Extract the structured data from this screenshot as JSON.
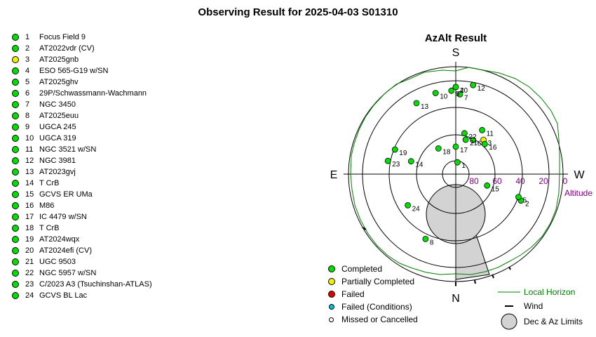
{
  "title": "Observing Result for 2025-04-03  S01310",
  "chart_title": "AzAlt Result",
  "compass": {
    "s": "S",
    "n": "N",
    "e": "E",
    "w": "W"
  },
  "altitude_labels": [
    "80",
    "60",
    "40",
    "20",
    "0"
  ],
  "altitude_axis_title": "Altitude",
  "colors": {
    "completed": "#00e000",
    "partial": "#f0f000",
    "failed": "#e00000",
    "failed_conditions": "#00c8d8",
    "horizon": "#008000",
    "altitude": "#800080",
    "limits": "#d3d3d3"
  },
  "targets": [
    {
      "num": "1",
      "name": "Focus Field 9",
      "status": "completed"
    },
    {
      "num": "2",
      "name": "AT2022vdr (CV)",
      "status": "completed"
    },
    {
      "num": "3",
      "name": "AT2025gnb",
      "status": "partial"
    },
    {
      "num": "4",
      "name": "ESO 565-G19 w/SN",
      "status": "completed"
    },
    {
      "num": "5",
      "name": "AT2025ghv",
      "status": "completed"
    },
    {
      "num": "6",
      "name": "29P/Schwassmann-Wachmann",
      "status": "completed"
    },
    {
      "num": "7",
      "name": "NGC 3450",
      "status": "completed"
    },
    {
      "num": "8",
      "name": "AT2025euu",
      "status": "completed"
    },
    {
      "num": "9",
      "name": "UGCA 245",
      "status": "completed"
    },
    {
      "num": "10",
      "name": "UGCA 319",
      "status": "completed"
    },
    {
      "num": "11",
      "name": "NGC 3521 w/SN",
      "status": "completed"
    },
    {
      "num": "12",
      "name": "NGC 3981",
      "status": "completed"
    },
    {
      "num": "13",
      "name": "AT2023gvj",
      "status": "completed"
    },
    {
      "num": "14",
      "name": "T CrB",
      "status": "completed"
    },
    {
      "num": "15",
      "name": "GCVS ER UMa",
      "status": "completed"
    },
    {
      "num": "16",
      "name": "M86",
      "status": "completed"
    },
    {
      "num": "17",
      "name": "IC 4479 w/SN",
      "status": "completed"
    },
    {
      "num": "18",
      "name": "T CrB",
      "status": "completed"
    },
    {
      "num": "19",
      "name": "AT2024wqx",
      "status": "completed"
    },
    {
      "num": "20",
      "name": "AT2024efi (CV)",
      "status": "completed"
    },
    {
      "num": "21",
      "name": "UGC 9503",
      "status": "completed"
    },
    {
      "num": "22",
      "name": "NGC 5957 w/SN",
      "status": "completed"
    },
    {
      "num": "23",
      "name": "C/2023 A3 (Tsuchinshan-ATLAS)",
      "status": "completed"
    },
    {
      "num": "24",
      "name": "GCVS BL Lac",
      "status": "completed"
    }
  ],
  "plot_points": [
    {
      "num": "1",
      "status": "completed",
      "az": 188,
      "alt": 80
    },
    {
      "num": "2",
      "status": "completed",
      "az": 292,
      "alt": 31
    },
    {
      "num": "3",
      "status": "partial",
      "az": 219,
      "alt": 53
    },
    {
      "num": "4",
      "status": "completed",
      "az": 180,
      "alt": 17
    },
    {
      "num": "5",
      "status": "completed",
      "az": 290,
      "alt": 34
    },
    {
      "num": "6",
      "status": "completed",
      "az": 207,
      "alt": 58
    },
    {
      "num": "7",
      "status": "completed",
      "az": 183,
      "alt": 23
    },
    {
      "num": "8",
      "status": "completed",
      "az": 25,
      "alt": 30
    },
    {
      "num": "9",
      "status": "completed",
      "az": 177,
      "alt": 20
    },
    {
      "num": "10",
      "status": "completed",
      "az": 166,
      "alt": 20
    },
    {
      "num": "11",
      "status": "completed",
      "az": 211,
      "alt": 47
    },
    {
      "num": "12",
      "status": "completed",
      "az": 191,
      "alt": 14
    },
    {
      "num": "13",
      "status": "completed",
      "az": 151,
      "alt": 22
    },
    {
      "num": "14",
      "status": "completed",
      "az": 106,
      "alt": 51
    },
    {
      "num": "15",
      "status": "completed",
      "az": 290,
      "alt": 62
    },
    {
      "num": "16",
      "status": "completed",
      "az": 224,
      "alt": 55
    },
    {
      "num": "17",
      "status": "completed",
      "az": 180,
      "alt": 67
    },
    {
      "num": "18",
      "status": "completed",
      "az": 146,
      "alt": 64
    },
    {
      "num": "19",
      "status": "completed",
      "az": 112,
      "alt": 35
    },
    {
      "num": "20",
      "status": "completed",
      "az": 180,
      "alt": 17
    },
    {
      "num": "21",
      "status": "completed",
      "az": 196,
      "alt": 60
    },
    {
      "num": "22",
      "status": "completed",
      "az": 192,
      "alt": 55
    },
    {
      "num": "23",
      "status": "completed",
      "az": 101,
      "alt": 32
    },
    {
      "num": "24",
      "status": "completed",
      "az": 57,
      "alt": 42
    }
  ],
  "legend": {
    "completed": "Completed",
    "partial": "Partially Completed",
    "failed": "Failed",
    "failed_conditions": "Failed (Conditions)",
    "missed": "Missed or Cancelled",
    "horizon": "Local Horizon",
    "wind": "Wind",
    "limits": "Dec & Az Limits"
  }
}
